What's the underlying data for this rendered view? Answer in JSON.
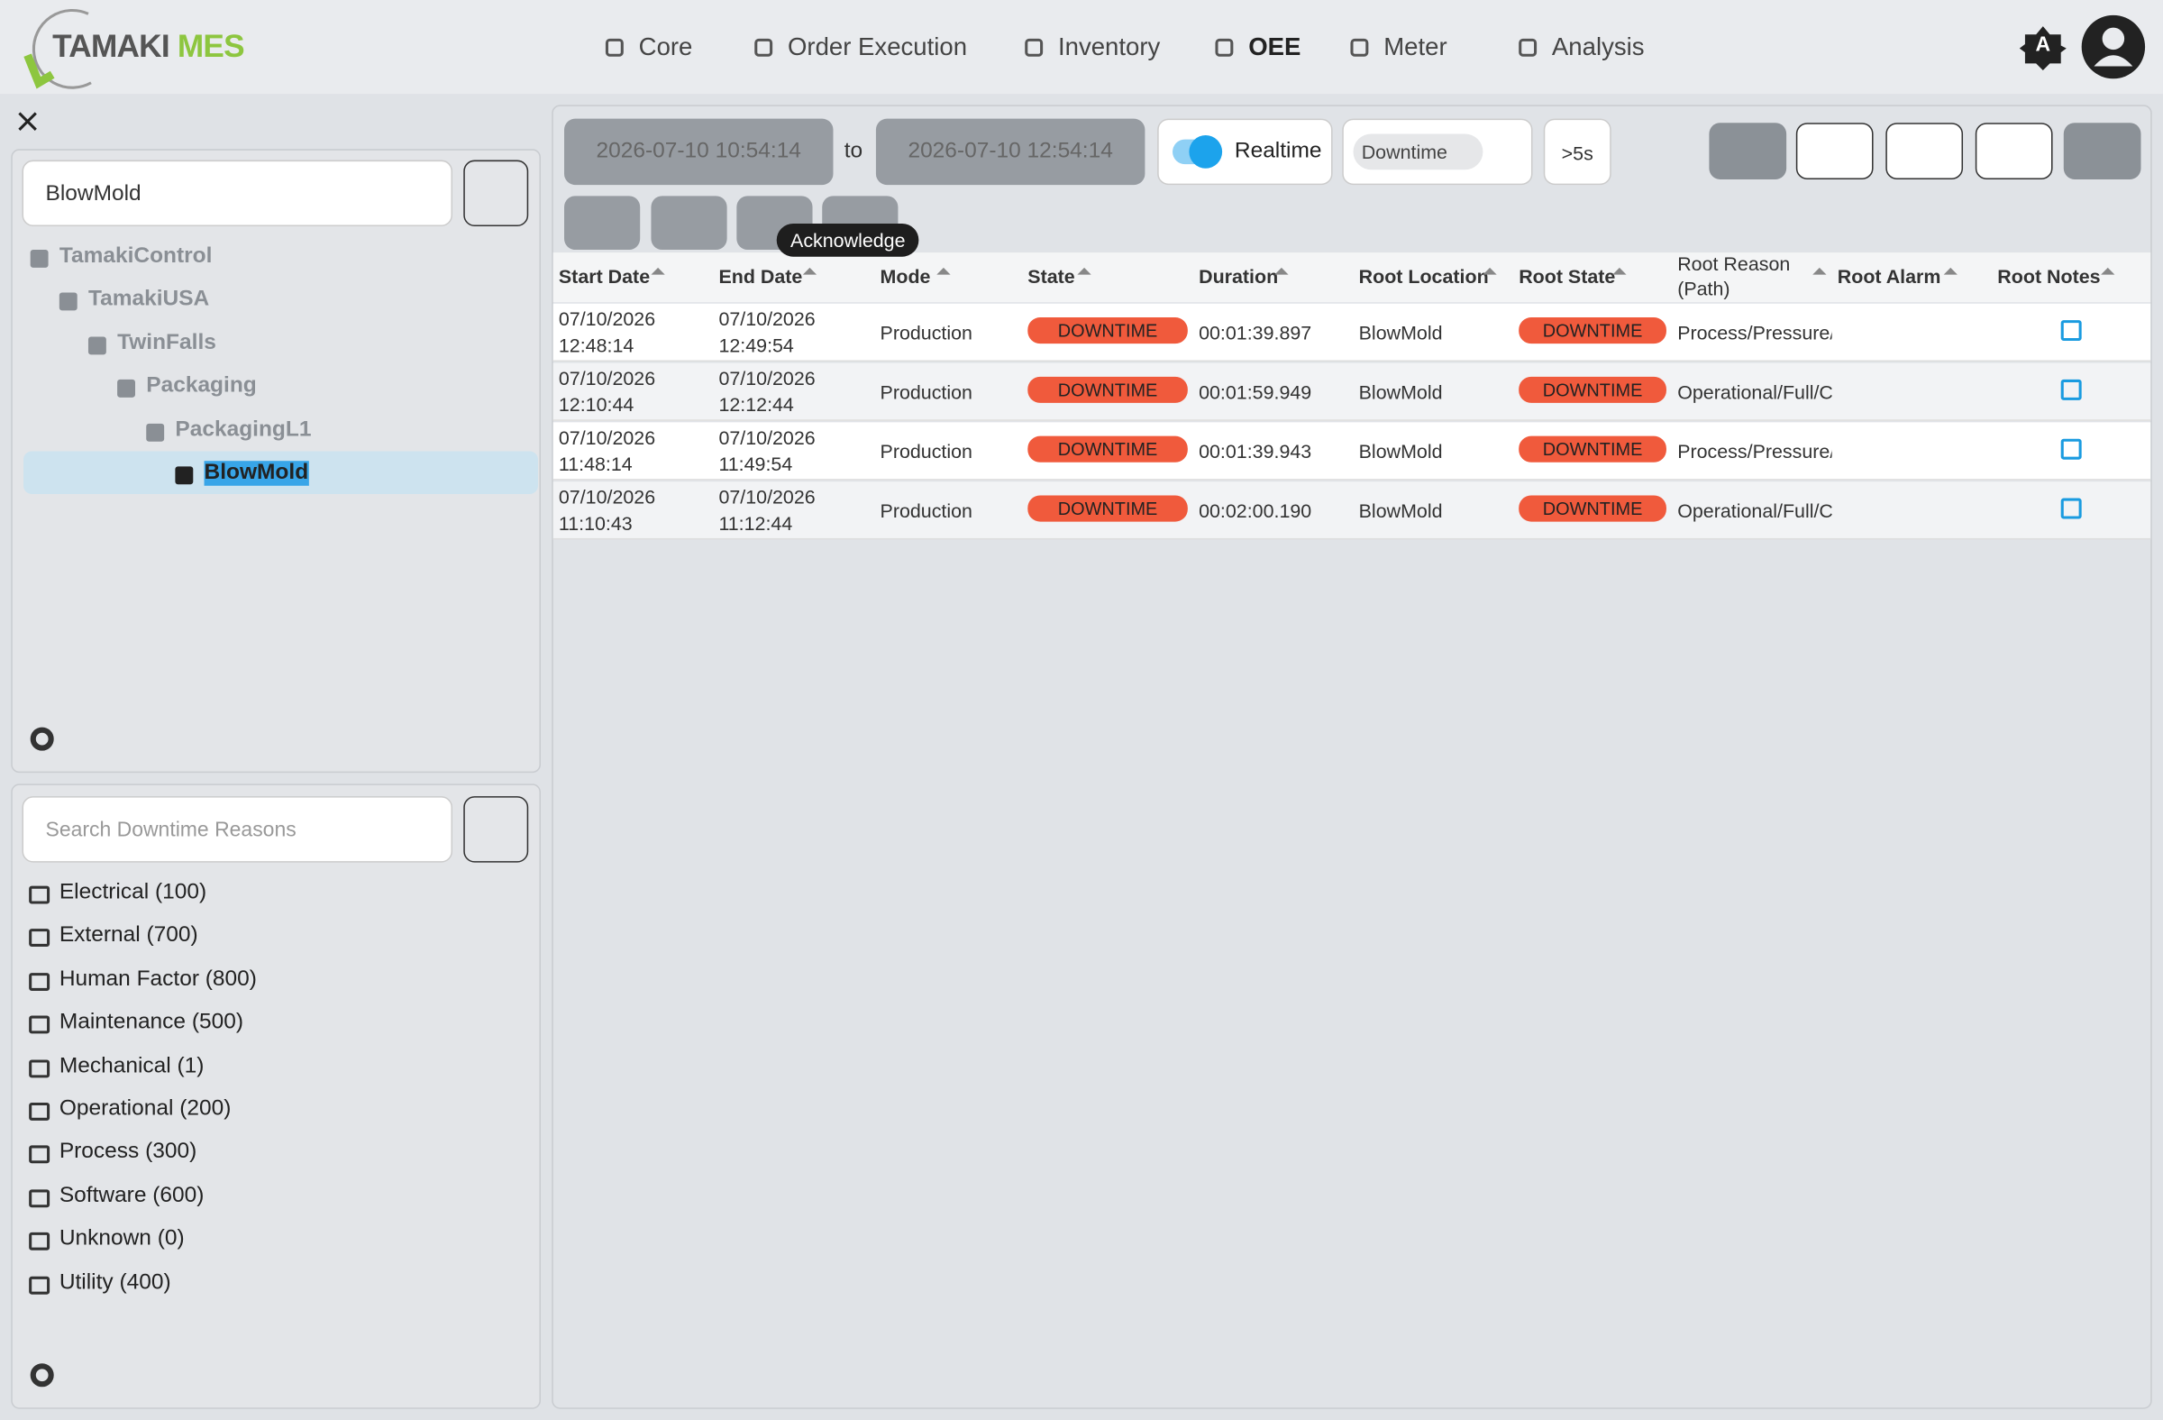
{
  "header": {
    "logo_main": "TAMAKI",
    "logo_accent": "MES",
    "nav": [
      "Core",
      "Order Execution",
      "Inventory",
      "OEE",
      "Meter",
      "Analysis"
    ],
    "theme_badge": "A"
  },
  "tree": {
    "search": "BlowMold",
    "nodes": [
      "TamakiControl",
      "TamakiUSA",
      "TwinFalls",
      "Packaging",
      "PackagingL1",
      "BlowMold"
    ]
  },
  "reasons": {
    "search_placeholder": "Search Downtime Reasons",
    "items": [
      "Electrical (100)",
      "External (700)",
      "Human Factor (800)",
      "Maintenance (500)",
      "Mechanical (1)",
      "Operational (200)",
      "Process (300)",
      "Software (600)",
      "Unknown (0)",
      "Utility (400)"
    ]
  },
  "toolbar": {
    "start": "2026-07-10 10:54:14",
    "separator": "to",
    "end": "2026-07-10 12:54:14",
    "realtime": "Realtime",
    "filter_chip": "Downtime",
    "min_duration": ">5s",
    "tooltip": "Acknowledge"
  },
  "table": {
    "columns": [
      "Start Date",
      "End Date",
      "Mode",
      "State",
      "Duration",
      "Root Location",
      "Root State",
      "Root Reason (Path)",
      "Root Alarm",
      "Root Notes"
    ],
    "rows": [
      {
        "start": "07/10/2026 12:48:14",
        "end": "07/10/2026 12:49:54",
        "mode": "Production",
        "state": "DOWNTIME",
        "duration": "00:01:39.897",
        "root_location": "BlowMold",
        "root_state": "DOWNTIME",
        "root_reason": "Process/Pressure/C"
      },
      {
        "start": "07/10/2026 12:10:44",
        "end": "07/10/2026 12:12:44",
        "mode": "Production",
        "state": "DOWNTIME",
        "duration": "00:01:59.949",
        "root_location": "BlowMold",
        "root_state": "DOWNTIME",
        "root_reason": "Operational/Full/C"
      },
      {
        "start": "07/10/2026 11:48:14",
        "end": "07/10/2026 11:49:54",
        "mode": "Production",
        "state": "DOWNTIME",
        "duration": "00:01:39.943",
        "root_location": "BlowMold",
        "root_state": "DOWNTIME",
        "root_reason": "Process/Pressure/C"
      },
      {
        "start": "07/10/2026 11:10:43",
        "end": "07/10/2026 11:12:44",
        "mode": "Production",
        "state": "DOWNTIME",
        "duration": "00:02:00.190",
        "root_location": "BlowMold",
        "root_state": "DOWNTIME",
        "root_reason": "Operational/Full/C"
      }
    ]
  }
}
